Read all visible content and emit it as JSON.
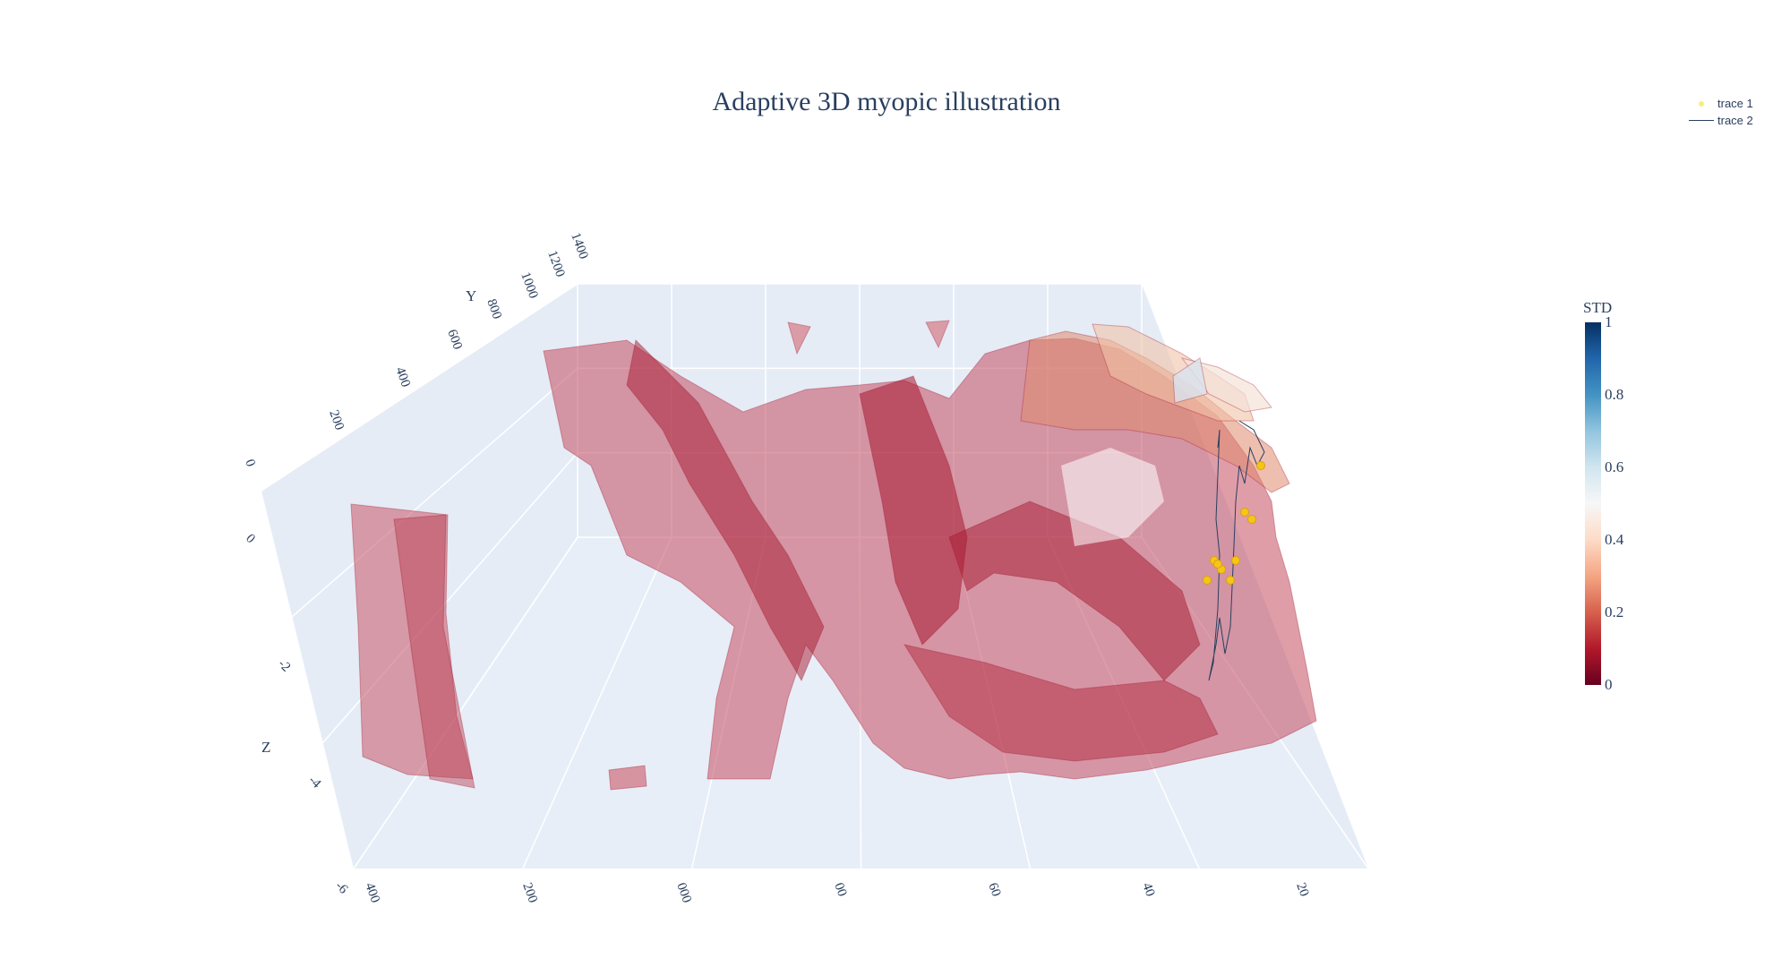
{
  "title": "Adaptive 3D myopic illustration",
  "legend": [
    {
      "name": "trace 1",
      "symbol": "marker",
      "color": "#f5f07a"
    },
    {
      "name": "trace 2",
      "symbol": "line",
      "color": "#2a3f5f"
    }
  ],
  "colorbar": {
    "title": "STD",
    "colorscale": "RdBu",
    "ticks": [
      "1",
      "0.8",
      "0.6",
      "0.4",
      "0.2",
      "0"
    ]
  },
  "chart_data": {
    "type": "surface",
    "title": "Adaptive 3D myopic illustration",
    "axes": {
      "x": {
        "ticks": [
          "400",
          "200",
          "000",
          "00",
          "60",
          "40",
          "20"
        ]
      },
      "y": {
        "label": "Y",
        "ticks": [
          "0",
          "200",
          "400",
          "600",
          "800",
          "1000",
          "1200",
          "1400"
        ]
      },
      "z": {
        "label": "Z",
        "ticks": [
          "0",
          "-2",
          "-4",
          "-6"
        ]
      }
    },
    "series": [
      {
        "name": "trace 1",
        "mode": "markers",
        "color": "#f5c518",
        "points": 9
      },
      {
        "name": "trace 2",
        "mode": "lines",
        "color": "#2a3f5f"
      }
    ],
    "surface_colorscale": "RdBu",
    "colorbar_range": [
      0,
      1
    ],
    "grid": true,
    "legend_position": "top-right"
  }
}
